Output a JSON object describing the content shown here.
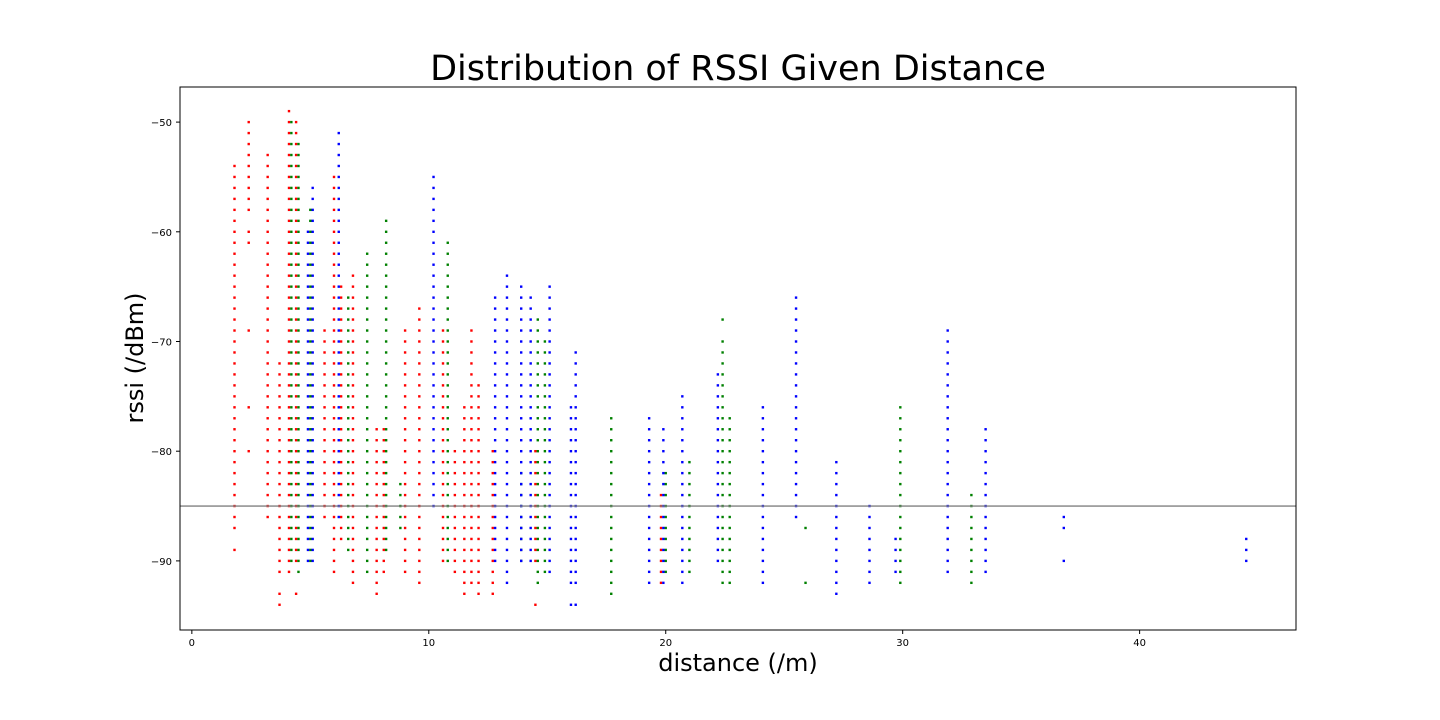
{
  "chart_data": {
    "type": "scatter",
    "title": "Distribution of RSSI Given Distance",
    "xlabel": "distance (/m)",
    "ylabel": "rssi (/dBm)",
    "xlim": [
      -0.5,
      46.6
    ],
    "ylim": [
      -96.3,
      -46.8
    ],
    "xticks": [
      0,
      10,
      20,
      30,
      40
    ],
    "yticks": [
      -50,
      -60,
      -70,
      -80,
      -90
    ],
    "grid": false,
    "reference_line": {
      "y": -85,
      "color": "#808080"
    },
    "colors": {
      "red": "#ff0000",
      "green": "#008000",
      "blue": "#0000ff"
    },
    "series": [
      {
        "color": "red",
        "columns": [
          {
            "x": 1.8,
            "ymin": -87,
            "ymax": -54,
            "extra": [
              -89
            ]
          },
          {
            "x": 2.4,
            "ymin": -58,
            "ymax": -50,
            "extra": [
              -60,
              -61,
              -69,
              -76,
              -80
            ]
          },
          {
            "x": 3.2,
            "ymin": -86,
            "ymax": -53
          },
          {
            "x": 3.7,
            "ymin": -91,
            "ymax": -72,
            "extra": [
              -93,
              -94
            ]
          },
          {
            "x": 4.1,
            "ymin": -91,
            "ymax": -50,
            "extra": [
              -49
            ]
          },
          {
            "x": 4.4,
            "ymin": -90,
            "ymax": -50,
            "extra": [
              -93
            ]
          },
          {
            "x": 5.6,
            "ymin": -86,
            "ymax": -69
          },
          {
            "x": 6.0,
            "ymin": -91,
            "ymax": -55
          },
          {
            "x": 6.3,
            "ymin": -88,
            "ymax": -65
          },
          {
            "x": 6.8,
            "ymin": -92,
            "ymax": -64
          },
          {
            "x": 7.8,
            "ymin": -93,
            "ymax": -78
          },
          {
            "x": 8.1,
            "ymin": -91,
            "ymax": -78
          },
          {
            "x": 9.0,
            "ymin": -91,
            "ymax": -69
          },
          {
            "x": 9.6,
            "ymin": -92,
            "ymax": -67
          },
          {
            "x": 10.6,
            "ymin": -90,
            "ymax": -69
          },
          {
            "x": 11.1,
            "ymin": -91,
            "ymax": -80
          },
          {
            "x": 11.5,
            "ymin": -93,
            "ymax": -76
          },
          {
            "x": 11.8,
            "ymin": -92,
            "ymax": -69
          },
          {
            "x": 12.1,
            "ymin": -93,
            "ymax": -74
          },
          {
            "x": 12.7,
            "ymin": -93,
            "ymax": -80
          },
          {
            "x": 14.5,
            "ymin": -90,
            "ymax": -80,
            "extra": [
              -94
            ]
          },
          {
            "x": 19.8,
            "ymin": -91,
            "ymax": -84,
            "extra": [
              -92
            ]
          }
        ]
      },
      {
        "color": "green",
        "columns": [
          {
            "x": 4.2,
            "ymin": -90,
            "ymax": -50
          },
          {
            "x": 4.5,
            "ymin": -91,
            "ymax": -52
          },
          {
            "x": 5.0,
            "ymin": -90,
            "ymax": -58
          },
          {
            "x": 6.6,
            "ymin": -89,
            "ymax": -66
          },
          {
            "x": 7.4,
            "ymin": -91,
            "ymax": -62
          },
          {
            "x": 8.2,
            "ymin": -89,
            "ymax": -59
          },
          {
            "x": 8.8,
            "ymin": -87,
            "ymax": -83
          },
          {
            "x": 10.8,
            "ymin": -90,
            "ymax": -61
          },
          {
            "x": 13.9,
            "ymin": -90,
            "ymax": -82
          },
          {
            "x": 14.6,
            "ymin": -92,
            "ymax": -68
          },
          {
            "x": 14.9,
            "ymin": -91,
            "ymax": -70
          },
          {
            "x": 17.7,
            "ymin": -93,
            "ymax": -77
          },
          {
            "x": 20.0,
            "ymin": -91,
            "ymax": -82
          },
          {
            "x": 21.0,
            "ymin": -91,
            "ymax": -81
          },
          {
            "x": 22.4,
            "ymin": -92,
            "ymax": -70,
            "extra": [
              -68
            ]
          },
          {
            "x": 22.7,
            "ymin": -92,
            "ymax": -77
          },
          {
            "x": 25.9,
            "ymin": -87,
            "ymax": -87,
            "extra": [
              -92
            ]
          },
          {
            "x": 29.9,
            "ymin": -92,
            "ymax": -76
          },
          {
            "x": 32.9,
            "ymin": -92,
            "ymax": -84
          }
        ]
      },
      {
        "color": "blue",
        "columns": [
          {
            "x": 4.9,
            "ymin": -90,
            "ymax": -60
          },
          {
            "x": 5.1,
            "ymin": -90,
            "ymax": -56
          },
          {
            "x": 6.2,
            "ymin": -86,
            "ymax": -51
          },
          {
            "x": 10.2,
            "ymin": -85,
            "ymax": -55
          },
          {
            "x": 12.8,
            "ymin": -90,
            "ymax": -66
          },
          {
            "x": 13.3,
            "ymin": -92,
            "ymax": -64
          },
          {
            "x": 13.9,
            "ymin": -90,
            "ymax": -65
          },
          {
            "x": 14.3,
            "ymin": -90,
            "ymax": -66
          },
          {
            "x": 15.1,
            "ymin": -91,
            "ymax": -65
          },
          {
            "x": 16.0,
            "ymin": -92,
            "ymax": -76,
            "extra": [
              -94
            ]
          },
          {
            "x": 16.2,
            "ymin": -92,
            "ymax": -71,
            "extra": [
              -94
            ]
          },
          {
            "x": 19.3,
            "ymin": -92,
            "ymax": -77
          },
          {
            "x": 19.9,
            "ymin": -92,
            "ymax": -78
          },
          {
            "x": 20.7,
            "ymin": -92,
            "ymax": -75
          },
          {
            "x": 22.2,
            "ymin": -90,
            "ymax": -73
          },
          {
            "x": 24.1,
            "ymin": -92,
            "ymax": -76
          },
          {
            "x": 25.5,
            "ymin": -86,
            "ymax": -66
          },
          {
            "x": 27.2,
            "ymin": -93,
            "ymax": -81
          },
          {
            "x": 28.6,
            "ymin": -92,
            "ymax": -85
          },
          {
            "x": 29.7,
            "ymin": -91,
            "ymax": -88
          },
          {
            "x": 31.9,
            "ymin": -91,
            "ymax": -69
          },
          {
            "x": 33.5,
            "ymin": -91,
            "ymax": -78
          },
          {
            "x": 36.8,
            "ymin": -87,
            "ymax": -86,
            "extra": [
              -90
            ]
          },
          {
            "x": 44.5,
            "ymin": -90,
            "ymax": -88
          }
        ]
      }
    ]
  }
}
